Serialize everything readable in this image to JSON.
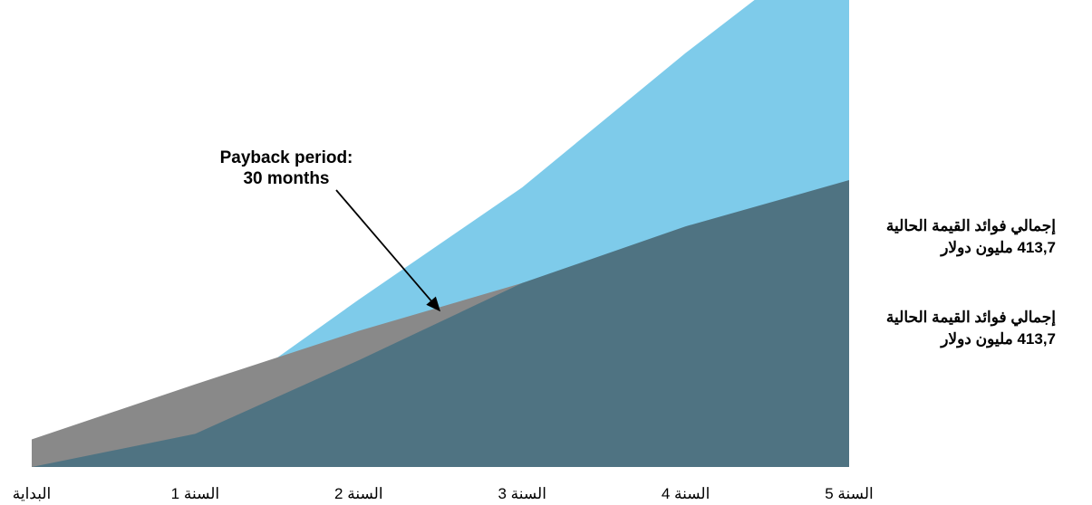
{
  "chart_data": {
    "type": "area",
    "categories": [
      "البداية",
      "السنة 1",
      "السنة 2",
      "السنة 3",
      "السنة 4",
      "السنة 5"
    ],
    "x": [
      0,
      1,
      2,
      3,
      4,
      5
    ],
    "series": [
      {
        "values": [
          0.0,
          0.58,
          1.98,
          3.12,
          5.66,
          8.25
        ],
        "color": "#7ecbea"
      },
      {
        "values": [
          0.9,
          2.7,
          4.44,
          6.0,
          7.56,
          9.12
        ],
        "color": "#898989"
      },
      {
        "values": [
          0.0,
          1.08,
          3.48,
          6.0,
          7.85,
          9.36
        ],
        "color": "#4f7382"
      }
    ],
    "ylim": [
      0,
      15
    ],
    "grid": false,
    "legend": "none",
    "annotation": {
      "lines": [
        "Payback period:",
        "30 months"
      ],
      "target_x": 2.5
    },
    "side_labels": [
      {
        "lines": [
          "إجمالي فوائد القيمة الحالية",
          "413,7 مليون دولار"
        ]
      },
      {
        "lines": [
          "إجمالي فوائد القيمة الحالية",
          "413,7 مليون دولار"
        ]
      }
    ]
  }
}
